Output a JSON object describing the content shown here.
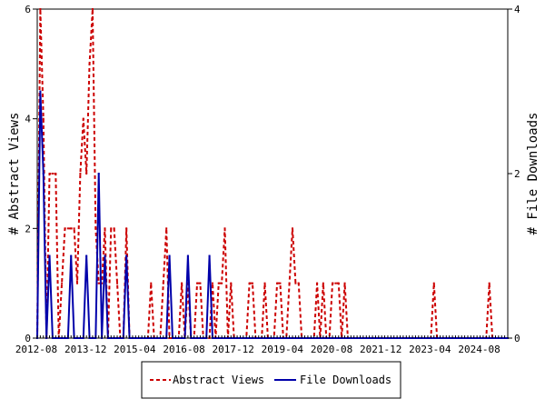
{
  "chart_data": {
    "type": "line",
    "xlabel": "",
    "ylabel_left": "# Abstract Views",
    "ylabel_right": "# File Downloads",
    "x_tick_labels": [
      "2012-08",
      "2013-12",
      "2015-04",
      "2016-08",
      "2017-12",
      "2019-04",
      "2020-08",
      "2021-12",
      "2023-04",
      "2024-08"
    ],
    "ylim_left": [
      0,
      6
    ],
    "ylim_right": [
      0,
      4
    ],
    "yticks_left": [
      0,
      2,
      4,
      6
    ],
    "yticks_right": [
      0,
      2,
      4
    ],
    "x_count": 154,
    "grid": false,
    "legend_position": "bottom",
    "series": [
      {
        "name": "Abstract Views",
        "axis": "left",
        "color": "#cc0000",
        "style": "dashed",
        "points": [
          [
            0,
            0
          ],
          [
            1,
            6
          ],
          [
            2,
            4
          ],
          [
            3,
            0
          ],
          [
            4,
            3
          ],
          [
            5,
            3
          ],
          [
            6,
            3
          ],
          [
            7,
            0
          ],
          [
            8,
            1
          ],
          [
            9,
            2
          ],
          [
            10,
            2
          ],
          [
            11,
            2
          ],
          [
            12,
            2
          ],
          [
            13,
            1
          ],
          [
            14,
            3
          ],
          [
            15,
            4
          ],
          [
            16,
            3
          ],
          [
            17,
            5
          ],
          [
            18,
            6
          ],
          [
            19,
            2
          ],
          [
            20,
            1
          ],
          [
            21,
            1
          ],
          [
            22,
            2
          ],
          [
            23,
            0
          ],
          [
            24,
            2
          ],
          [
            25,
            2
          ],
          [
            26,
            1
          ],
          [
            27,
            0
          ],
          [
            28,
            0
          ],
          [
            29,
            2
          ],
          [
            30,
            0
          ],
          [
            31,
            0
          ],
          [
            32,
            0
          ],
          [
            33,
            0
          ],
          [
            34,
            0
          ],
          [
            35,
            0
          ],
          [
            36,
            0
          ],
          [
            37,
            1
          ],
          [
            38,
            0
          ],
          [
            39,
            0
          ],
          [
            40,
            0
          ],
          [
            41,
            1
          ],
          [
            42,
            2
          ],
          [
            43,
            0
          ],
          [
            44,
            0
          ],
          [
            45,
            0
          ],
          [
            46,
            0
          ],
          [
            47,
            1
          ],
          [
            48,
            0
          ],
          [
            49,
            1
          ],
          [
            50,
            0
          ],
          [
            51,
            0
          ],
          [
            52,
            1
          ],
          [
            53,
            1
          ],
          [
            54,
            0
          ],
          [
            55,
            0
          ],
          [
            56,
            0
          ],
          [
            57,
            1
          ],
          [
            58,
            0
          ],
          [
            59,
            1
          ],
          [
            60,
            1
          ],
          [
            61,
            2
          ],
          [
            62,
            0
          ],
          [
            63,
            1
          ],
          [
            64,
            0
          ],
          [
            65,
            0
          ],
          [
            66,
            0
          ],
          [
            67,
            0
          ],
          [
            68,
            0
          ],
          [
            69,
            1
          ],
          [
            70,
            1
          ],
          [
            71,
            0
          ],
          [
            72,
            0
          ],
          [
            73,
            0
          ],
          [
            74,
            1
          ],
          [
            75,
            0
          ],
          [
            76,
            0
          ],
          [
            77,
            0
          ],
          [
            78,
            1
          ],
          [
            79,
            1
          ],
          [
            80,
            0
          ],
          [
            81,
            0
          ],
          [
            82,
            1
          ],
          [
            83,
            2
          ],
          [
            84,
            1
          ],
          [
            85,
            1
          ],
          [
            86,
            0
          ],
          [
            87,
            0
          ],
          [
            88,
            0
          ],
          [
            89,
            0
          ],
          [
            90,
            0
          ],
          [
            91,
            1
          ],
          [
            92,
            0
          ],
          [
            93,
            1
          ],
          [
            94,
            0
          ],
          [
            95,
            0
          ],
          [
            96,
            1
          ],
          [
            97,
            1
          ],
          [
            98,
            1
          ],
          [
            99,
            0
          ],
          [
            100,
            1
          ],
          [
            101,
            0
          ],
          [
            102,
            0
          ],
          [
            103,
            0
          ],
          [
            104,
            0
          ],
          [
            105,
            0
          ],
          [
            106,
            0
          ],
          [
            107,
            0
          ],
          [
            108,
            0
          ],
          [
            109,
            0
          ],
          [
            110,
            0
          ],
          [
            111,
            0
          ],
          [
            112,
            0
          ],
          [
            113,
            0
          ],
          [
            114,
            0
          ],
          [
            115,
            0
          ],
          [
            116,
            0
          ],
          [
            117,
            0
          ],
          [
            118,
            0
          ],
          [
            119,
            0
          ],
          [
            120,
            0
          ],
          [
            121,
            0
          ],
          [
            122,
            0
          ],
          [
            123,
            0
          ],
          [
            124,
            0
          ],
          [
            125,
            0
          ],
          [
            126,
            0
          ],
          [
            127,
            0
          ],
          [
            128,
            0
          ],
          [
            129,
            1
          ],
          [
            130,
            0
          ],
          [
            131,
            0
          ],
          [
            132,
            0
          ],
          [
            133,
            0
          ],
          [
            134,
            0
          ],
          [
            135,
            0
          ],
          [
            136,
            0
          ],
          [
            137,
            0
          ],
          [
            138,
            0
          ],
          [
            139,
            0
          ],
          [
            140,
            0
          ],
          [
            141,
            0
          ],
          [
            142,
            0
          ],
          [
            143,
            0
          ],
          [
            144,
            0
          ],
          [
            145,
            0
          ],
          [
            146,
            0
          ],
          [
            147,
            1
          ],
          [
            148,
            0
          ],
          [
            149,
            0
          ],
          [
            150,
            0
          ],
          [
            151,
            0
          ],
          [
            152,
            0
          ],
          [
            153,
            0
          ]
        ]
      },
      {
        "name": "File Downloads",
        "axis": "right",
        "color": "#0000aa",
        "style": "solid",
        "points": [
          [
            0,
            0
          ],
          [
            1,
            3
          ],
          [
            2,
            2
          ],
          [
            3,
            0
          ],
          [
            4,
            1
          ],
          [
            5,
            0
          ],
          [
            6,
            0
          ],
          [
            7,
            0
          ],
          [
            8,
            0
          ],
          [
            9,
            0
          ],
          [
            10,
            0
          ],
          [
            11,
            1
          ],
          [
            12,
            0
          ],
          [
            13,
            0
          ],
          [
            14,
            0
          ],
          [
            15,
            0
          ],
          [
            16,
            1
          ],
          [
            17,
            0
          ],
          [
            18,
            0
          ],
          [
            19,
            0
          ],
          [
            20,
            2
          ],
          [
            21,
            0
          ],
          [
            22,
            1
          ],
          [
            23,
            0
          ],
          [
            24,
            0
          ],
          [
            25,
            0
          ],
          [
            26,
            0
          ],
          [
            27,
            0
          ],
          [
            28,
            0
          ],
          [
            29,
            1
          ],
          [
            30,
            0
          ],
          [
            31,
            0
          ],
          [
            32,
            0
          ],
          [
            33,
            0
          ],
          [
            34,
            0
          ],
          [
            35,
            0
          ],
          [
            36,
            0
          ],
          [
            37,
            0
          ],
          [
            38,
            0
          ],
          [
            39,
            0
          ],
          [
            40,
            0
          ],
          [
            41,
            0
          ],
          [
            42,
            0
          ],
          [
            43,
            1
          ],
          [
            44,
            0
          ],
          [
            45,
            0
          ],
          [
            46,
            0
          ],
          [
            47,
            0
          ],
          [
            48,
            0
          ],
          [
            49,
            1
          ],
          [
            50,
            0
          ],
          [
            51,
            0
          ],
          [
            52,
            0
          ],
          [
            53,
            0
          ],
          [
            54,
            0
          ],
          [
            55,
            0
          ],
          [
            56,
            1
          ],
          [
            57,
            0
          ],
          [
            58,
            0
          ],
          [
            59,
            0
          ],
          [
            60,
            0
          ],
          [
            61,
            0
          ],
          [
            62,
            0
          ],
          [
            63,
            0
          ],
          [
            64,
            0
          ],
          [
            65,
            0
          ],
          [
            66,
            0
          ],
          [
            67,
            0
          ],
          [
            68,
            0
          ],
          [
            69,
            0
          ],
          [
            70,
            0
          ],
          [
            71,
            0
          ],
          [
            72,
            0
          ],
          [
            73,
            0
          ],
          [
            74,
            0
          ],
          [
            75,
            0
          ],
          [
            76,
            0
          ],
          [
            77,
            0
          ],
          [
            78,
            0
          ],
          [
            79,
            0
          ],
          [
            80,
            0
          ],
          [
            81,
            0
          ],
          [
            82,
            0
          ],
          [
            83,
            0
          ],
          [
            84,
            0
          ],
          [
            85,
            0
          ],
          [
            86,
            0
          ],
          [
            87,
            0
          ],
          [
            88,
            0
          ],
          [
            89,
            0
          ],
          [
            90,
            0
          ],
          [
            91,
            0
          ],
          [
            92,
            0
          ],
          [
            93,
            0
          ],
          [
            94,
            0
          ],
          [
            95,
            0
          ],
          [
            96,
            0
          ],
          [
            97,
            0
          ],
          [
            98,
            0
          ],
          [
            99,
            0
          ],
          [
            100,
            0
          ],
          [
            101,
            0
          ],
          [
            102,
            0
          ],
          [
            103,
            0
          ],
          [
            104,
            0
          ],
          [
            105,
            0
          ],
          [
            106,
            0
          ],
          [
            107,
            0
          ],
          [
            108,
            0
          ],
          [
            109,
            0
          ],
          [
            110,
            0
          ],
          [
            111,
            0
          ],
          [
            112,
            0
          ],
          [
            113,
            0
          ],
          [
            114,
            0
          ],
          [
            115,
            0
          ],
          [
            116,
            0
          ],
          [
            117,
            0
          ],
          [
            118,
            0
          ],
          [
            119,
            0
          ],
          [
            120,
            0
          ],
          [
            121,
            0
          ],
          [
            122,
            0
          ],
          [
            123,
            0
          ],
          [
            124,
            0
          ],
          [
            125,
            0
          ],
          [
            126,
            0
          ],
          [
            127,
            0
          ],
          [
            128,
            0
          ],
          [
            129,
            0
          ],
          [
            130,
            0
          ],
          [
            131,
            0
          ],
          [
            132,
            0
          ],
          [
            133,
            0
          ],
          [
            134,
            0
          ],
          [
            135,
            0
          ],
          [
            136,
            0
          ],
          [
            137,
            0
          ],
          [
            138,
            0
          ],
          [
            139,
            0
          ],
          [
            140,
            0
          ],
          [
            141,
            0
          ],
          [
            142,
            0
          ],
          [
            143,
            0
          ],
          [
            144,
            0
          ],
          [
            145,
            0
          ],
          [
            146,
            0
          ],
          [
            147,
            0
          ],
          [
            148,
            0
          ],
          [
            149,
            0
          ],
          [
            150,
            0
          ],
          [
            151,
            0
          ],
          [
            152,
            0
          ],
          [
            153,
            0
          ]
        ]
      }
    ]
  }
}
